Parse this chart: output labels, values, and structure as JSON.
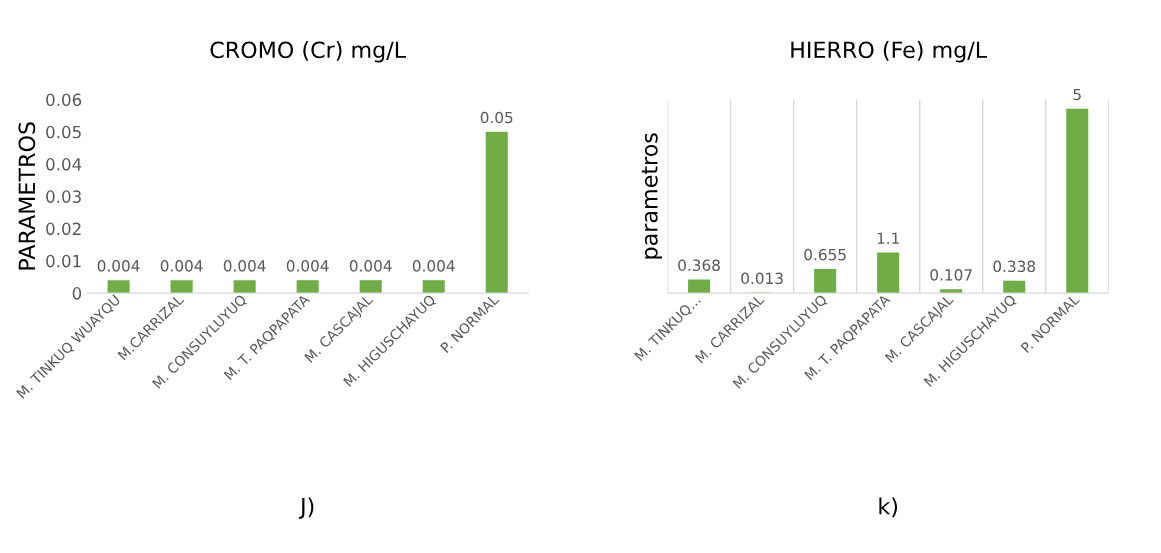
{
  "chart_data": [
    {
      "type": "bar",
      "title": "CROMO (Cr) mg/L",
      "ylabel": "PARAMETROS",
      "categories": [
        "M. TINKUQ WUAYQU",
        "M.CARRIZAL",
        "M. CONSUYLUYUQ",
        "M. T. PAQPAPATA",
        "M. CASCAJAL",
        "M. HIGUSCHAYUQ",
        "P. NORMAL"
      ],
      "values": [
        0.004,
        0.004,
        0.004,
        0.004,
        0.004,
        0.004,
        0.05
      ],
      "color": "#70ad47",
      "ylim": [
        0,
        0.06
      ],
      "yticks": [
        0,
        0.01,
        0.02,
        0.03,
        0.04,
        0.05,
        0.06
      ],
      "data_labels": true,
      "grid": false,
      "annotations": [
        "J)"
      ]
    },
    {
      "type": "bar",
      "title": "HIERRO (Fe) mg/L",
      "ylabel": "parametros",
      "categories": [
        "M. TINKUQ...",
        "M. CARRIZAL",
        "M. CONSUYLUYUQ",
        "M. T. PAQPAPATA",
        "M. CASCAJAL",
        "M. HIGUSCHAYUQ",
        "P. NORMAL"
      ],
      "values": [
        0.368,
        0.013,
        0.655,
        1.1,
        0.107,
        0.338,
        5
      ],
      "color": "#70ad47",
      "data_labels": true,
      "tick_labels": "x",
      "grid": "x",
      "annotations": [
        "k)"
      ]
    }
  ]
}
